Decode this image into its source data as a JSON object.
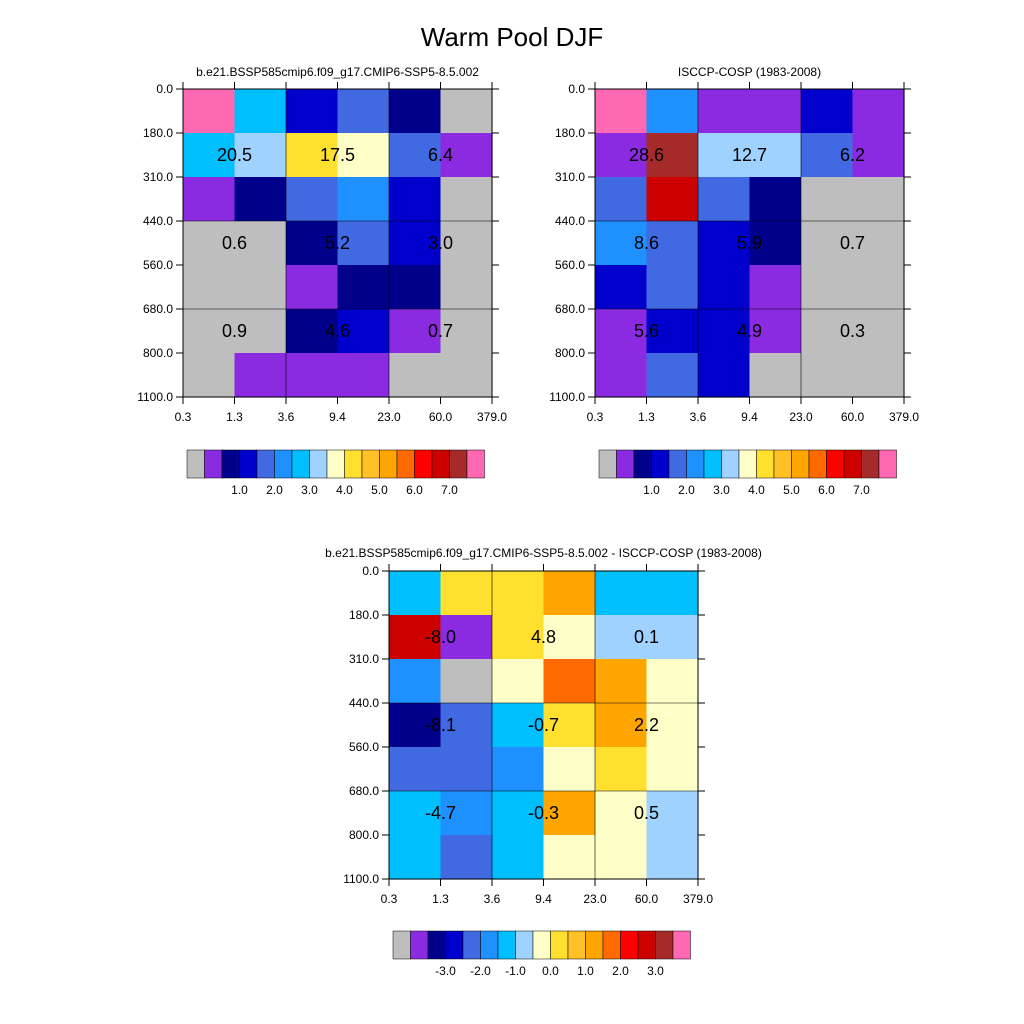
{
  "main_title": "Warm Pool DJF",
  "chart_data": [
    {
      "type": "heatmap",
      "title": "b.e21.BSSP585cmip6.f09_g17.CMIP6-SSP5-8.5.002",
      "x_tick_labels": [
        "0.3",
        "1.3",
        "3.6",
        "9.4",
        "23.0",
        "60.0",
        "379.0"
      ],
      "y_tick_labels": [
        "0.0",
        "180.0",
        "310.0",
        "440.0",
        "560.0",
        "680.0",
        "800.0",
        "1100.0"
      ],
      "cells": [
        [
          "#ff69b4",
          "#00bfff",
          "#0000cd",
          "#4169e1",
          "#00008b",
          "#bebebe"
        ],
        [
          "#00bfff",
          "#a0d2ff",
          "#ffe02e",
          "#ffffc8",
          "#4169e1",
          "#8a2be2"
        ],
        [
          "#8a2be2",
          "#00008b",
          "#4169e1",
          "#1e90ff",
          "#0000cd",
          "#bebebe"
        ],
        [
          "#bebebe",
          "#bebebe",
          "#00008b",
          "#4169e1",
          "#0000cd",
          "#bebebe"
        ],
        [
          "#bebebe",
          "#bebebe",
          "#8a2be2",
          "#00008b",
          "#00008b",
          "#bebebe"
        ],
        [
          "#bebebe",
          "#bebebe",
          "#00008b",
          "#0000cd",
          "#8a2be2",
          "#bebebe"
        ],
        [
          "#bebebe",
          "#8a2be2",
          "#8a2be2",
          "#8a2be2",
          "#bebebe",
          "#bebebe"
        ]
      ],
      "block_labels": [
        [
          "20.5",
          "17.5",
          "6.4"
        ],
        [
          "0.6",
          "5.2",
          "3.0"
        ],
        [
          "0.9",
          "4.6",
          "0.7"
        ]
      ],
      "colorbar": {
        "colors": [
          "#bebebe",
          "#8a2be2",
          "#00008b",
          "#0000cd",
          "#4169e1",
          "#1e90ff",
          "#00bfff",
          "#a0d2ff",
          "#ffffc8",
          "#ffe02e",
          "#ffc125",
          "#ffa500",
          "#ff6a00",
          "#ff0000",
          "#cd0000",
          "#a52a2a",
          "#ff69b4"
        ],
        "labels": [
          "1.0",
          "2.0",
          "3.0",
          "4.0",
          "5.0",
          "6.0",
          "7.0"
        ]
      }
    },
    {
      "type": "heatmap",
      "title": "ISCCP-COSP (1983-2008)",
      "x_tick_labels": [
        "0.3",
        "1.3",
        "3.6",
        "9.4",
        "23.0",
        "60.0",
        "379.0"
      ],
      "y_tick_labels": [
        "0.0",
        "180.0",
        "310.0",
        "440.0",
        "560.0",
        "680.0",
        "800.0",
        "1100.0"
      ],
      "cells": [
        [
          "#ff69b4",
          "#1e90ff",
          "#8a2be2",
          "#8a2be2",
          "#0000cd",
          "#8a2be2"
        ],
        [
          "#8a2be2",
          "#a52a2a",
          "#a0d2ff",
          "#a0d2ff",
          "#4169e1",
          "#8a2be2"
        ],
        [
          "#4169e1",
          "#cd0000",
          "#4169e1",
          "#00008b",
          "#bebebe",
          "#bebebe"
        ],
        [
          "#1e90ff",
          "#4169e1",
          "#0000cd",
          "#00008b",
          "#bebebe",
          "#bebebe"
        ],
        [
          "#0000cd",
          "#4169e1",
          "#0000cd",
          "#8a2be2",
          "#bebebe",
          "#bebebe"
        ],
        [
          "#8a2be2",
          "#0000cd",
          "#0000cd",
          "#8a2be2",
          "#bebebe",
          "#bebebe"
        ],
        [
          "#8a2be2",
          "#4169e1",
          "#0000cd",
          "#bebebe",
          "#bebebe",
          "#bebebe"
        ]
      ],
      "block_labels": [
        [
          "28.6",
          "12.7",
          "6.2"
        ],
        [
          "8.6",
          "5.9",
          "0.7"
        ],
        [
          "5.6",
          "4.9",
          "0.3"
        ]
      ],
      "colorbar": {
        "colors": [
          "#bebebe",
          "#8a2be2",
          "#00008b",
          "#0000cd",
          "#4169e1",
          "#1e90ff",
          "#00bfff",
          "#a0d2ff",
          "#ffffc8",
          "#ffe02e",
          "#ffc125",
          "#ffa500",
          "#ff6a00",
          "#ff0000",
          "#cd0000",
          "#a52a2a",
          "#ff69b4"
        ],
        "labels": [
          "1.0",
          "2.0",
          "3.0",
          "4.0",
          "5.0",
          "6.0",
          "7.0"
        ]
      }
    },
    {
      "type": "heatmap",
      "title": "b.e21.BSSP585cmip6.f09_g17.CMIP6-SSP5-8.5.002 - ISCCP-COSP (1983-2008)",
      "x_tick_labels": [
        "0.3",
        "1.3",
        "3.6",
        "9.4",
        "23.0",
        "60.0",
        "379.0"
      ],
      "y_tick_labels": [
        "0.0",
        "180.0",
        "310.0",
        "440.0",
        "560.0",
        "680.0",
        "800.0",
        "1100.0"
      ],
      "cells": [
        [
          "#00bfff",
          "#ffe02e",
          "#ffe02e",
          "#ffa500",
          "#00bfff",
          "#00bfff"
        ],
        [
          "#cd0000",
          "#8a2be2",
          "#ffe02e",
          "#ffffc8",
          "#a0d2ff",
          "#a0d2ff"
        ],
        [
          "#1e90ff",
          "#bebebe",
          "#ffffc8",
          "#ff6a00",
          "#ffa500",
          "#ffffc8"
        ],
        [
          "#00008b",
          "#4169e1",
          "#00bfff",
          "#ffe02e",
          "#ffa500",
          "#ffffc8"
        ],
        [
          "#4169e1",
          "#4169e1",
          "#1e90ff",
          "#ffffc8",
          "#ffe02e",
          "#ffffc8"
        ],
        [
          "#00bfff",
          "#1e90ff",
          "#00bfff",
          "#ffa500",
          "#ffffc8",
          "#a0d2ff"
        ],
        [
          "#00bfff",
          "#4169e1",
          "#00bfff",
          "#ffffc8",
          "#ffffc8",
          "#a0d2ff"
        ]
      ],
      "block_labels": [
        [
          "-8.0",
          "4.8",
          "0.1"
        ],
        [
          "-8.1",
          "-0.7",
          "2.2"
        ],
        [
          "-4.7",
          "-0.3",
          "0.5"
        ]
      ],
      "colorbar": {
        "colors": [
          "#bebebe",
          "#8a2be2",
          "#00008b",
          "#0000cd",
          "#4169e1",
          "#1e90ff",
          "#00bfff",
          "#a0d2ff",
          "#ffffc8",
          "#ffe02e",
          "#ffc125",
          "#ffa500",
          "#ff6a00",
          "#ff0000",
          "#cd0000",
          "#a52a2a",
          "#ff69b4"
        ],
        "labels": [
          "-3.0",
          "-2.0",
          "-1.0",
          "0.0",
          "1.0",
          "2.0",
          "3.0"
        ]
      }
    }
  ]
}
